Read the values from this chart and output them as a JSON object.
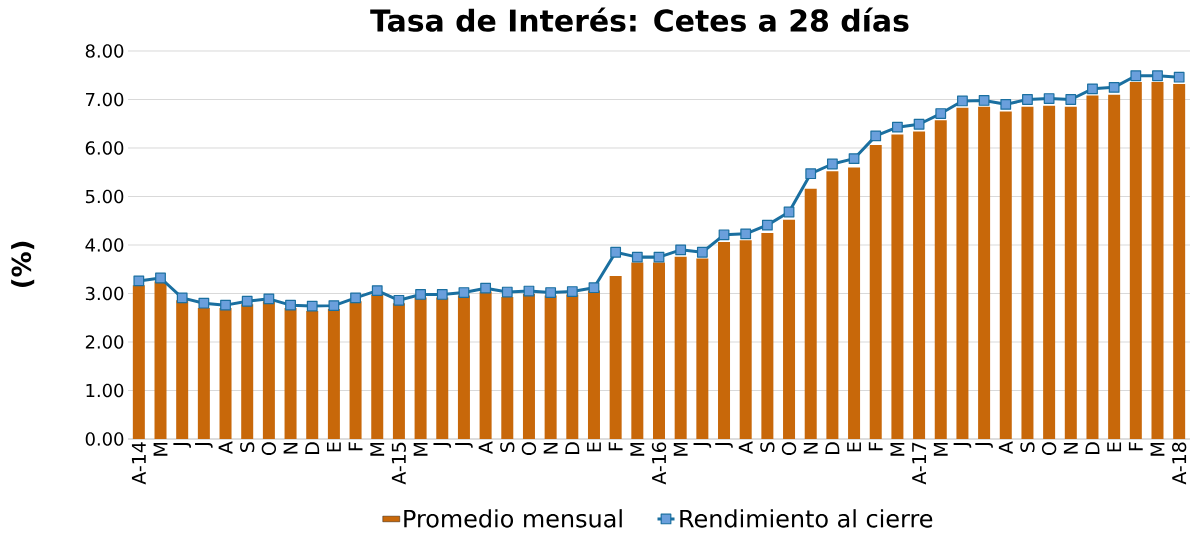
{
  "chart_data": {
    "type": "bar",
    "title": "Tasa de Interés: Cetes a 28 días",
    "ylabel": "(%)",
    "categories": [
      "A-14",
      "M",
      "J",
      "J",
      "A",
      "S",
      "O",
      "N",
      "D",
      "E",
      "F",
      "M",
      "A-15",
      "M",
      "J",
      "J",
      "A",
      "S",
      "O",
      "N",
      "D",
      "E",
      "F",
      "M",
      "A-16",
      "M",
      "J",
      "J",
      "A",
      "S",
      "O",
      "N",
      "D",
      "E",
      "F",
      "M",
      "A-17",
      "M",
      "J",
      "J",
      "A",
      "S",
      "O",
      "N",
      "D",
      "E",
      "F",
      "M",
      "A-18"
    ],
    "series": [
      {
        "name": "Promedio mensual",
        "color": "#c8680a",
        "values": [
          3.17,
          3.25,
          2.86,
          2.7,
          2.7,
          2.78,
          2.84,
          2.7,
          2.64,
          2.68,
          2.84,
          2.98,
          2.8,
          2.92,
          2.92,
          2.96,
          3.04,
          2.93,
          2.99,
          2.96,
          2.98,
          3.06,
          3.36,
          3.64,
          3.64,
          3.76,
          3.72,
          4.06,
          4.1,
          4.25,
          4.52,
          5.16,
          5.52,
          5.6,
          6.06,
          6.28,
          6.34,
          6.57,
          6.83,
          6.85,
          6.75,
          6.85,
          6.87,
          6.85,
          7.08,
          7.1,
          7.36,
          7.36,
          7.32
        ]
      },
      {
        "name": "Rendimiento al cierre",
        "type": "line",
        "color": "#1a6fa0",
        "marker": "square",
        "values": [
          3.26,
          3.32,
          2.91,
          2.8,
          2.76,
          2.84,
          2.89,
          2.76,
          2.74,
          2.75,
          2.91,
          3.06,
          2.86,
          2.98,
          2.98,
          3.02,
          3.11,
          3.03,
          3.05,
          3.02,
          3.04,
          3.12,
          3.85,
          3.75,
          3.75,
          3.9,
          3.85,
          4.21,
          4.23,
          4.41,
          4.68,
          5.47,
          5.67,
          5.78,
          6.25,
          6.43,
          6.49,
          6.71,
          6.97,
          6.98,
          6.9,
          7.0,
          7.02,
          7.0,
          7.22,
          7.25,
          7.49,
          7.49,
          7.46
        ]
      }
    ],
    "ylim": [
      0,
      8
    ],
    "yticks": [
      {
        "value": 0,
        "label": "0.00"
      },
      {
        "value": 1,
        "label": "1.00"
      },
      {
        "value": 2,
        "label": "2.00"
      },
      {
        "value": 3,
        "label": "3.00"
      },
      {
        "value": 4,
        "label": "4.00"
      },
      {
        "value": 5,
        "label": "5.00"
      },
      {
        "value": 6,
        "label": "6.00"
      },
      {
        "value": 7,
        "label": "7.00"
      },
      {
        "value": 8,
        "label": "8.00"
      }
    ],
    "grid": "y",
    "legend": "bottom"
  }
}
